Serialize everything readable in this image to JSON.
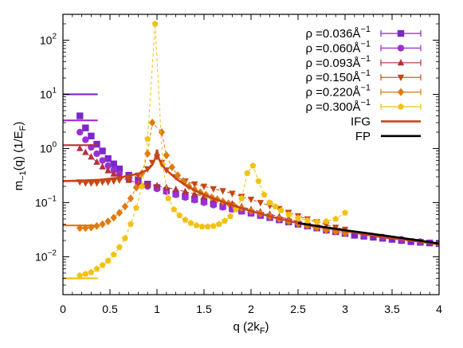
{
  "chart_data": {
    "type": "scatter",
    "title": "",
    "xlabel_main": "q (2k",
    "xlabel_sub": "F",
    "xlabel_end": ")",
    "ylabel_main": "m",
    "ylabel_sub1": "−1",
    "ylabel_mid": "(q) (1/E",
    "ylabel_sub2": "F",
    "ylabel_end": ")",
    "xlim": [
      0,
      4
    ],
    "ylim": [
      0.002,
      300
    ],
    "yscale": "log",
    "grid": false,
    "legend_position": "top-right",
    "x_ticks": [
      {
        "value": 0,
        "label": "0"
      },
      {
        "value": 0.5,
        "label": "0.5"
      },
      {
        "value": 1,
        "label": "1"
      },
      {
        "value": 1.5,
        "label": "1.5"
      },
      {
        "value": 2,
        "label": "2"
      },
      {
        "value": 2.5,
        "label": "2.5"
      },
      {
        "value": 3,
        "label": "3"
      },
      {
        "value": 3.5,
        "label": "3.5"
      },
      {
        "value": 4,
        "label": "4"
      }
    ],
    "y_ticks": [
      {
        "value": 0.01,
        "base": "10",
        "exp": "−2"
      },
      {
        "value": 0.1,
        "base": "10",
        "exp": "−1"
      },
      {
        "value": 1,
        "base": "10",
        "exp": "0"
      },
      {
        "value": 10,
        "base": "10",
        "exp": "1"
      },
      {
        "value": 100,
        "base": "10",
        "exp": "2"
      }
    ],
    "series": [
      {
        "name": "ρ =0.036Å",
        "name_sup": "−1",
        "color": "#7b27c9",
        "marker": "square",
        "dashed": false,
        "limit_value": 10.0,
        "x": [
          0.18,
          0.24,
          0.3,
          0.36,
          0.42,
          0.48,
          0.54,
          0.6,
          0.7,
          0.8,
          0.9,
          1.0,
          1.1,
          1.2,
          1.3,
          1.4,
          1.5,
          1.6,
          1.7,
          1.8,
          1.9,
          2.0,
          2.1,
          2.2,
          2.3,
          2.4,
          2.5,
          2.6,
          2.7,
          2.8,
          2.9,
          3.0,
          3.1,
          3.2,
          3.3,
          3.4,
          3.5,
          3.6,
          3.7,
          3.8,
          3.9,
          4.0
        ],
        "y": [
          4.0,
          2.4,
          1.7,
          1.2,
          0.9,
          0.65,
          0.52,
          0.42,
          0.32,
          0.26,
          0.22,
          0.19,
          0.165,
          0.145,
          0.13,
          0.115,
          0.105,
          0.095,
          0.085,
          0.077,
          0.07,
          0.064,
          0.058,
          0.053,
          0.048,
          0.044,
          0.04,
          0.037,
          0.034,
          0.031,
          0.029,
          0.027,
          0.025,
          0.024,
          0.023,
          0.022,
          0.021,
          0.02,
          0.019,
          0.0185,
          0.018,
          0.0175
        ]
      },
      {
        "name": "ρ =0.060Å",
        "name_sup": "−1",
        "color": "#9b2fd6",
        "marker": "circle",
        "dashed": false,
        "limit_value": 3.3,
        "x": [
          0.18,
          0.24,
          0.3,
          0.36,
          0.42,
          0.48,
          0.54,
          0.6,
          0.7,
          0.8,
          0.9,
          1.0,
          1.1,
          1.2,
          1.3,
          1.4,
          1.5,
          1.6,
          1.7,
          1.8,
          1.9,
          2.0,
          2.1,
          2.2,
          2.3,
          2.4,
          2.5,
          2.6,
          2.7,
          2.8,
          2.9,
          3.0,
          3.2,
          3.4,
          3.6,
          3.8,
          4.0
        ],
        "y": [
          2.0,
          1.45,
          1.05,
          0.8,
          0.6,
          0.48,
          0.4,
          0.34,
          0.27,
          0.23,
          0.2,
          0.18,
          0.16,
          0.14,
          0.125,
          0.112,
          0.1,
          0.09,
          0.082,
          0.075,
          0.069,
          0.064,
          0.058,
          0.053,
          0.049,
          0.045,
          0.041,
          0.038,
          0.035,
          0.032,
          0.03,
          0.028,
          0.025,
          0.023,
          0.021,
          0.019,
          0.0175
        ]
      },
      {
        "name": "ρ =0.093Å",
        "name_sup": "−1",
        "color": "#b3303f",
        "marker": "triangle-up",
        "dashed": true,
        "limit_value": 1.15,
        "x": [
          0.18,
          0.24,
          0.3,
          0.36,
          0.42,
          0.48,
          0.54,
          0.6,
          0.7,
          0.8,
          0.9,
          1.0,
          1.1,
          1.2,
          1.3,
          1.4,
          1.5,
          1.6,
          1.7,
          1.8,
          1.9,
          2.0,
          2.1,
          2.2,
          2.3,
          2.4,
          2.5,
          2.6,
          2.7,
          2.8,
          2.9,
          3.0
        ],
        "y": [
          1.0,
          0.85,
          0.7,
          0.56,
          0.46,
          0.39,
          0.34,
          0.3,
          0.26,
          0.23,
          0.215,
          0.205,
          0.19,
          0.175,
          0.16,
          0.145,
          0.13,
          0.118,
          0.105,
          0.095,
          0.085,
          0.075,
          0.068,
          0.061,
          0.055,
          0.05,
          0.045,
          0.041,
          0.037,
          0.034,
          0.031,
          0.029
        ]
      },
      {
        "name": "ρ =0.150Å",
        "name_sup": "−1",
        "color": "#c64614",
        "marker": "triangle-down",
        "dashed": true,
        "limit_value": 0.25,
        "x": [
          0.18,
          0.24,
          0.3,
          0.36,
          0.42,
          0.48,
          0.54,
          0.6,
          0.7,
          0.8,
          0.9,
          0.95,
          1.0,
          1.05,
          1.1,
          1.2,
          1.3,
          1.4,
          1.5,
          1.6,
          1.7,
          1.8,
          1.9,
          2.0,
          2.1,
          2.2,
          2.3,
          2.4,
          2.5,
          2.6,
          2.7,
          2.8,
          2.9,
          3.0
        ],
        "y": [
          0.24,
          0.23,
          0.23,
          0.23,
          0.24,
          0.24,
          0.25,
          0.26,
          0.28,
          0.32,
          0.42,
          0.55,
          0.7,
          0.55,
          0.4,
          0.3,
          0.25,
          0.22,
          0.2,
          0.18,
          0.165,
          0.148,
          0.13,
          0.115,
          0.1,
          0.088,
          0.077,
          0.066,
          0.057,
          0.05,
          0.044,
          0.039,
          0.035,
          0.032
        ]
      },
      {
        "name": "ρ =0.220Å",
        "name_sup": "−1",
        "color": "#df7a0f",
        "marker": "diamond",
        "dashed": true,
        "limit_value": 0.038,
        "x": [
          0.18,
          0.24,
          0.3,
          0.36,
          0.42,
          0.48,
          0.54,
          0.6,
          0.66,
          0.72,
          0.78,
          0.84,
          0.9,
          0.95,
          1.05,
          1.1,
          1.16,
          1.22,
          1.28,
          1.34,
          1.4,
          1.46,
          1.52,
          1.58,
          1.64,
          1.7,
          1.76,
          1.82,
          1.9,
          2.0,
          2.1,
          2.2,
          2.3,
          2.4,
          2.5,
          2.6,
          2.7,
          2.8,
          2.9,
          3.0
        ],
        "y": [
          0.034,
          0.034,
          0.035,
          0.037,
          0.04,
          0.045,
          0.053,
          0.065,
          0.085,
          0.12,
          0.19,
          0.35,
          0.8,
          3.0,
          2.0,
          0.75,
          0.45,
          0.32,
          0.25,
          0.2,
          0.175,
          0.155,
          0.14,
          0.125,
          0.115,
          0.105,
          0.097,
          0.088,
          0.08,
          0.07,
          0.063,
          0.056,
          0.05,
          0.045,
          0.041,
          0.037,
          0.034,
          0.031,
          0.029,
          0.027
        ]
      },
      {
        "name": "ρ =0.300Å",
        "name_sup": "−1",
        "color": "#f2c212",
        "marker": "pentagon",
        "dashed": true,
        "limit_value": 0.004,
        "x": [
          0.18,
          0.24,
          0.3,
          0.36,
          0.42,
          0.48,
          0.54,
          0.6,
          0.66,
          0.72,
          0.78,
          0.84,
          0.9,
          0.98,
          1.06,
          1.12,
          1.18,
          1.24,
          1.3,
          1.36,
          1.42,
          1.48,
          1.54,
          1.6,
          1.66,
          1.72,
          1.78,
          1.84,
          1.9,
          1.96,
          2.02,
          2.08,
          2.14,
          2.2,
          2.26,
          2.32,
          2.4,
          2.5,
          2.6,
          2.7,
          2.8,
          2.9,
          3.0
        ],
        "y": [
          0.0045,
          0.0048,
          0.0052,
          0.006,
          0.007,
          0.0085,
          0.011,
          0.015,
          0.022,
          0.04,
          0.08,
          0.2,
          1.5,
          200,
          0.5,
          0.12,
          0.075,
          0.058,
          0.048,
          0.042,
          0.038,
          0.036,
          0.036,
          0.037,
          0.04,
          0.046,
          0.056,
          0.075,
          0.12,
          0.35,
          0.48,
          0.25,
          0.14,
          0.1,
          0.085,
          0.072,
          0.06,
          0.052,
          0.047,
          0.044,
          0.045,
          0.05,
          0.065
        ]
      },
      {
        "name": "IFG",
        "color": "#c8441a",
        "type": "line",
        "x": [
          0.0,
          0.2,
          0.4,
          0.6,
          0.8,
          0.9,
          0.95,
          0.98,
          1.0,
          1.02,
          1.05,
          1.1,
          1.2,
          1.3,
          1.4,
          1.5,
          1.6,
          1.8,
          2.0,
          2.2,
          2.4,
          2.6,
          2.8,
          3.0,
          3.2,
          3.4,
          3.6,
          3.8,
          4.0
        ],
        "y": [
          0.25,
          0.255,
          0.265,
          0.29,
          0.34,
          0.4,
          0.5,
          0.65,
          0.95,
          0.65,
          0.5,
          0.4,
          0.28,
          0.21,
          0.17,
          0.14,
          0.12,
          0.09,
          0.07,
          0.056,
          0.046,
          0.039,
          0.034,
          0.03,
          0.026,
          0.023,
          0.021,
          0.019,
          0.017
        ]
      },
      {
        "name": "FP",
        "color": "#000000",
        "type": "line",
        "x": [
          2.5,
          2.75,
          3.0,
          3.25,
          3.5,
          3.75,
          4.0
        ],
        "y": [
          0.042,
          0.036,
          0.031,
          0.027,
          0.0235,
          0.0205,
          0.0175
        ]
      }
    ]
  }
}
